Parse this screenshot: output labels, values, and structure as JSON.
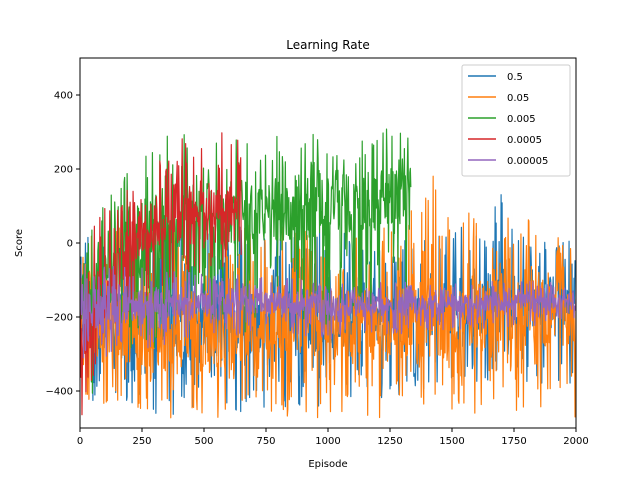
{
  "chart_data": {
    "type": "line",
    "title": "Learning Rate",
    "xlabel": "Episode",
    "ylabel": "Score",
    "xlim": [
      0,
      2000
    ],
    "ylim": [
      -500,
      500
    ],
    "xticks": [
      0,
      250,
      500,
      750,
      1000,
      1250,
      1500,
      1750,
      2000
    ],
    "yticks": [
      -400,
      -200,
      0,
      200,
      400
    ],
    "grid": false,
    "legend_position": "top-right",
    "series": [
      {
        "name": "0.5",
        "color": "#1f77b4",
        "x_range": [
          0,
          2000
        ],
        "points_per_segment": 20,
        "envelope": [
          [
            0,
            -420,
            20
          ],
          [
            250,
            -460,
            60
          ],
          [
            500,
            -470,
            60
          ],
          [
            750,
            -450,
            40
          ],
          [
            1000,
            -440,
            40
          ],
          [
            1250,
            -420,
            20
          ],
          [
            1500,
            -400,
            20
          ],
          [
            1650,
            -380,
            260
          ],
          [
            1750,
            -380,
            20
          ],
          [
            2000,
            -380,
            10
          ]
        ],
        "mean": [
          [
            0,
            -200
          ],
          [
            250,
            -230
          ],
          [
            500,
            -230
          ],
          [
            750,
            -210
          ],
          [
            1000,
            -200
          ],
          [
            1250,
            -190
          ],
          [
            1500,
            -170
          ],
          [
            1750,
            -160
          ],
          [
            2000,
            -160
          ]
        ]
      },
      {
        "name": "0.05",
        "color": "#ff7f0e",
        "x_range": [
          0,
          2000
        ],
        "envelope": [
          [
            0,
            -430,
            10
          ],
          [
            250,
            -470,
            70
          ],
          [
            500,
            -480,
            80
          ],
          [
            750,
            -470,
            60
          ],
          [
            1000,
            -480,
            40
          ],
          [
            1250,
            -470,
            50
          ],
          [
            1460,
            -460,
            210
          ],
          [
            1500,
            -460,
            100
          ],
          [
            1750,
            -470,
            80
          ],
          [
            2000,
            -480,
            30
          ]
        ],
        "mean": [
          [
            0,
            -210
          ],
          [
            250,
            -240
          ],
          [
            500,
            -250
          ],
          [
            750,
            -220
          ],
          [
            1000,
            -220
          ],
          [
            1250,
            -220
          ],
          [
            1500,
            -200
          ],
          [
            1750,
            -190
          ],
          [
            2000,
            -190
          ]
        ]
      },
      {
        "name": "0.005",
        "color": "#2ca02c",
        "x_range": [
          0,
          1335
        ],
        "envelope": [
          [
            0,
            -460,
            30
          ],
          [
            100,
            -400,
            110
          ],
          [
            250,
            -300,
            290
          ],
          [
            400,
            -250,
            300
          ],
          [
            500,
            -200,
            280
          ],
          [
            650,
            -250,
            280
          ],
          [
            750,
            -200,
            290
          ],
          [
            1000,
            -220,
            300
          ],
          [
            1250,
            -150,
            310
          ],
          [
            1335,
            -120,
            300
          ]
        ],
        "mean": [
          [
            0,
            -180
          ],
          [
            100,
            -100
          ],
          [
            250,
            20
          ],
          [
            400,
            60
          ],
          [
            500,
            80
          ],
          [
            750,
            90
          ],
          [
            1000,
            100
          ],
          [
            1250,
            120
          ],
          [
            1335,
            140
          ]
        ]
      },
      {
        "name": "0.0005",
        "color": "#d62728",
        "x_range": [
          0,
          650
        ],
        "envelope": [
          [
            0,
            -480,
            0
          ],
          [
            100,
            -350,
            100
          ],
          [
            250,
            -150,
            220
          ],
          [
            400,
            -120,
            290
          ],
          [
            500,
            -80,
            270
          ],
          [
            600,
            -60,
            320
          ],
          [
            650,
            -40,
            270
          ]
        ],
        "mean": [
          [
            0,
            -250
          ],
          [
            100,
            -120
          ],
          [
            250,
            40
          ],
          [
            400,
            90
          ],
          [
            500,
            100
          ],
          [
            650,
            110
          ]
        ]
      },
      {
        "name": "0.00005",
        "color": "#9467bd",
        "x_range": [
          0,
          2000
        ],
        "envelope": [
          [
            0,
            -330,
            -40
          ],
          [
            150,
            -300,
            -60
          ],
          [
            300,
            -280,
            -70
          ],
          [
            500,
            -260,
            -80
          ],
          [
            750,
            -250,
            -90
          ],
          [
            1000,
            -260,
            -100
          ],
          [
            1250,
            -250,
            -100
          ],
          [
            1500,
            -240,
            -110
          ],
          [
            1750,
            -230,
            -100
          ],
          [
            2000,
            -220,
            -110
          ]
        ],
        "mean": [
          [
            0,
            -180
          ],
          [
            250,
            -170
          ],
          [
            500,
            -160
          ],
          [
            750,
            -160
          ],
          [
            1000,
            -170
          ],
          [
            1250,
            -170
          ],
          [
            1500,
            -165
          ],
          [
            1750,
            -160
          ],
          [
            2000,
            -160
          ]
        ]
      }
    ]
  }
}
